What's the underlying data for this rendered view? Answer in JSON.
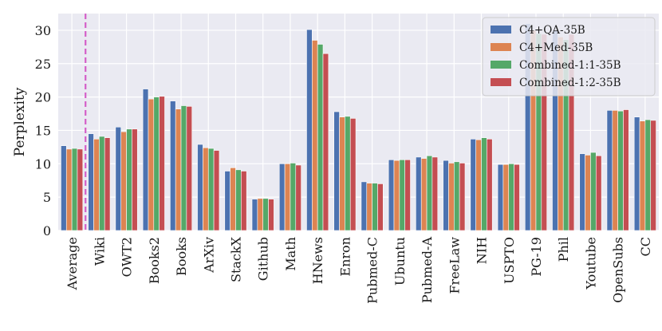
{
  "chart_data": {
    "type": "bar",
    "title": "",
    "xlabel": "",
    "ylabel": "Perplexity",
    "ylim": [
      0,
      32.5
    ],
    "yticks": [
      0,
      5,
      10,
      15,
      20,
      25,
      30
    ],
    "grid": true,
    "legend_position": "top-right",
    "categories": [
      "Average",
      "Wiki",
      "OWT2",
      "Books2",
      "Books",
      "ArXiv",
      "StackX",
      "Github",
      "Math",
      "HNews",
      "Enron",
      "Pubmed-C",
      "Ubuntu",
      "Pubmed-A",
      "FreeLaw",
      "NIH",
      "USPTO",
      "PG-19",
      "Phil",
      "Youtube",
      "OpenSubs",
      "CC"
    ],
    "separator_after_category": "Average",
    "series": [
      {
        "name": "C4+QA-35B",
        "color": "#4c72b0",
        "values": [
          12.7,
          14.5,
          15.5,
          21.2,
          19.4,
          12.9,
          8.9,
          4.7,
          10.0,
          30.1,
          17.8,
          7.3,
          10.6,
          11.0,
          10.5,
          13.7,
          9.9,
          31.0,
          30.0,
          11.5,
          18.0,
          17.0
        ]
      },
      {
        "name": "C4+Med-35B",
        "color": "#dd8452",
        "values": [
          12.2,
          13.7,
          14.8,
          19.7,
          18.2,
          12.4,
          9.4,
          4.8,
          10.0,
          28.5,
          17.0,
          7.1,
          10.5,
          10.8,
          10.1,
          13.6,
          9.9,
          30.0,
          29.0,
          11.3,
          18.0,
          16.4
        ]
      },
      {
        "name": "Combined-1:1-35B",
        "color": "#55a868",
        "values": [
          12.3,
          14.1,
          15.2,
          20.0,
          18.7,
          12.3,
          9.1,
          4.8,
          10.1,
          27.9,
          17.1,
          7.1,
          10.6,
          11.2,
          10.3,
          13.9,
          10.0,
          29.5,
          28.6,
          11.7,
          17.9,
          16.6
        ]
      },
      {
        "name": "Combined-1:2-35B",
        "color": "#c44e52",
        "values": [
          12.2,
          13.9,
          15.2,
          20.1,
          18.6,
          12.0,
          8.9,
          4.7,
          9.8,
          26.5,
          16.8,
          7.0,
          10.6,
          11.0,
          10.1,
          13.7,
          9.9,
          29.4,
          29.4,
          11.2,
          18.1,
          16.5
        ]
      }
    ]
  }
}
